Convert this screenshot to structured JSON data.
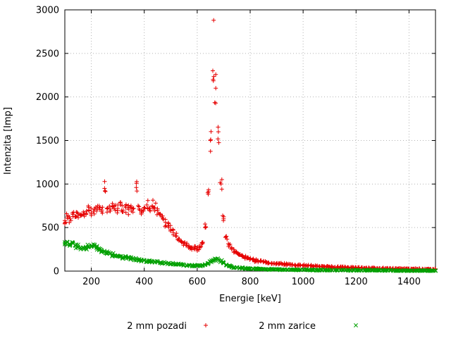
{
  "chart_data": {
    "type": "scatter",
    "title": "",
    "xlabel": "Energie [keV]",
    "ylabel": "Intenzita [Imp]",
    "xlim": [
      100,
      1500
    ],
    "ylim": [
      0,
      3000
    ],
    "xticks": [
      200,
      400,
      600,
      800,
      1000,
      1200,
      1400
    ],
    "yticks": [
      0,
      500,
      1000,
      1500,
      2000,
      2500,
      3000
    ],
    "grid": true,
    "legend_position": "bottom-center",
    "x_start": 100,
    "x_step": 10,
    "render_hints": {
      "replicates": 3,
      "x_jitter_kev": 4,
      "y_jitter_frac": 0.08,
      "y_jitter_abs": 5
    },
    "series": [
      {
        "name": "2 mm pozadi",
        "marker": "plus",
        "marker_glyph": "+",
        "color": "#e60000",
        "extra_points": [
          [
            662,
            2880
          ]
        ],
        "values": [
          580,
          620,
          600,
          650,
          630,
          660,
          640,
          680,
          650,
          700,
          670,
          710,
          690,
          730,
          700,
          950,
          720,
          690,
          740,
          700,
          720,
          760,
          700,
          730,
          710,
          750,
          720,
          960,
          740,
          700,
          730,
          760,
          720,
          750,
          730,
          700,
          650,
          600,
          560,
          520,
          480,
          440,
          400,
          370,
          340,
          320,
          300,
          280,
          270,
          260,
          250,
          270,
          320,
          500,
          900,
          1500,
          2200,
          2100,
          1600,
          1000,
          600,
          400,
          300,
          260,
          230,
          210,
          190,
          170,
          160,
          150,
          140,
          130,
          120,
          115,
          110,
          105,
          100,
          95,
          92,
          90,
          88,
          85,
          82,
          80,
          78,
          75,
          72,
          70,
          68,
          66,
          65,
          63,
          62,
          60,
          58,
          57,
          55,
          54,
          52,
          50,
          50,
          48,
          47,
          46,
          45,
          44,
          43,
          42,
          41,
          40,
          40,
          38,
          37,
          36,
          36,
          35,
          34,
          34,
          33,
          32,
          32,
          31,
          30,
          30,
          29,
          28,
          28,
          27,
          27,
          26,
          26,
          25,
          25,
          24,
          24,
          23,
          23,
          22,
          22,
          21,
          21
        ]
      },
      {
        "name": "2 mm zarice",
        "marker": "cross",
        "marker_glyph": "x",
        "color": "#00a000",
        "extra_points": [],
        "values": [
          310,
          330,
          300,
          320,
          290,
          280,
          270,
          265,
          270,
          280,
          290,
          280,
          265,
          250,
          235,
          220,
          210,
          200,
          190,
          180,
          175,
          168,
          160,
          155,
          150,
          145,
          140,
          135,
          130,
          126,
          122,
          118,
          114,
          110,
          106,
          102,
          98,
          95,
          92,
          88,
          85,
          82,
          79,
          76,
          73,
          70,
          68,
          66,
          64,
          62,
          60,
          62,
          66,
          75,
          90,
          110,
          128,
          135,
          130,
          115,
          95,
          75,
          60,
          50,
          44,
          40,
          37,
          34,
          32,
          30,
          28,
          27,
          26,
          25,
          24,
          23,
          22,
          21,
          21,
          20,
          20,
          19,
          19,
          18,
          18,
          17,
          17,
          16,
          16,
          15,
          15,
          15,
          14,
          14,
          14,
          13,
          13,
          13,
          12,
          12,
          12,
          12,
          11,
          11,
          11,
          11,
          10,
          10,
          10,
          10,
          10,
          9,
          9,
          9,
          9,
          9,
          8,
          8,
          8,
          8,
          8,
          8,
          7,
          7,
          7,
          7,
          7,
          7,
          6,
          6,
          6,
          6,
          6,
          6,
          5,
          5,
          5,
          5,
          5,
          5,
          5
        ]
      }
    ]
  }
}
